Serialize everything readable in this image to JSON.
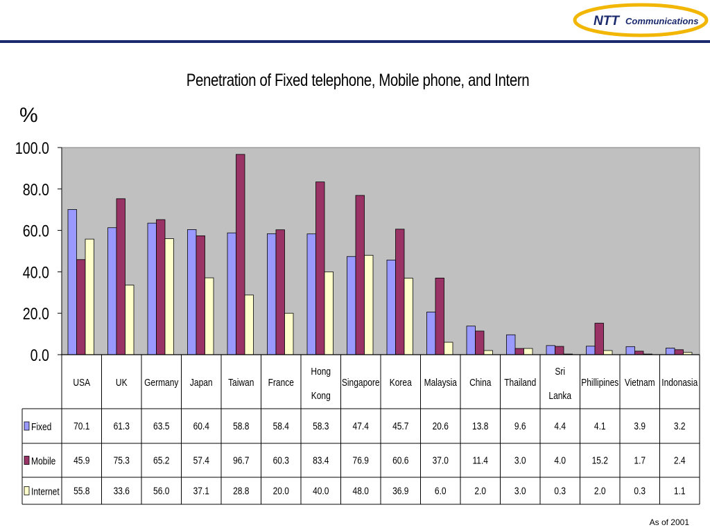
{
  "brand": {
    "logo_text": "NTT Communications",
    "accent": "#1a2a6c",
    "logo_gold": "#f2b705"
  },
  "chart_data": {
    "type": "bar",
    "title": "Penetration of Fixed telephone, Mobile phone, and Intern",
    "ylabel": "%",
    "ylim": [
      0,
      100
    ],
    "yticks": [
      "100.0",
      "80.0",
      "60.0",
      "40.0",
      "20.0",
      "0.0"
    ],
    "grid": false,
    "plot_background": "#c0c0c0",
    "legend": "table-rows",
    "categories": [
      "USA",
      "UK",
      "Germany",
      "Japan",
      "Taiwan",
      "France",
      "Hong Kong",
      "Singapore",
      "Korea",
      "Malaysia",
      "China",
      "Thailand",
      "Sri Lanka",
      "Phillipines",
      "Vietnam",
      "Indonasia"
    ],
    "series": [
      {
        "name": "Fixed",
        "color": "#9999ff",
        "values": [
          70.1,
          61.3,
          63.5,
          60.4,
          58.8,
          58.4,
          58.3,
          47.4,
          45.7,
          20.6,
          13.8,
          9.6,
          4.4,
          4.1,
          3.9,
          3.2
        ],
        "labels": [
          "70.1",
          "61.3",
          "63.5",
          "60.4",
          "58.8",
          "58.4",
          "58.3",
          "47.4",
          "45.7",
          "20.6",
          "13.8",
          "9.6",
          "4.4",
          "4.1",
          "3.9",
          "3.2"
        ]
      },
      {
        "name": "Mobile",
        "color": "#993366",
        "values": [
          45.9,
          75.3,
          65.2,
          57.4,
          96.7,
          60.3,
          83.4,
          76.9,
          60.6,
          37.0,
          11.4,
          3.0,
          4.0,
          15.2,
          1.7,
          2.4
        ],
        "labels": [
          "45.9",
          "75.3",
          "65.2",
          "57.4",
          "96.7",
          "60.3",
          "83.4",
          "76.9",
          "60.6",
          "37.0",
          "11.4",
          "3.0",
          "4.0",
          "15.2",
          "1.7",
          "2.4"
        ]
      },
      {
        "name": "Internet",
        "color": "#ffffcc",
        "values": [
          55.8,
          33.6,
          56.0,
          37.1,
          28.8,
          20.0,
          40.0,
          48.0,
          36.9,
          6.0,
          2.0,
          3.0,
          0.3,
          2.0,
          0.3,
          1.1
        ],
        "labels": [
          "55.8",
          "33.6",
          "56.0",
          "37.1",
          "28.8",
          "20.0",
          "40.0",
          "48.0",
          "36.9",
          "6.0",
          "2.0",
          "3.0",
          "0.3",
          "2.0",
          "0.3",
          "1.1"
        ]
      }
    ]
  },
  "footer": {
    "as_of": "As of 2001"
  }
}
